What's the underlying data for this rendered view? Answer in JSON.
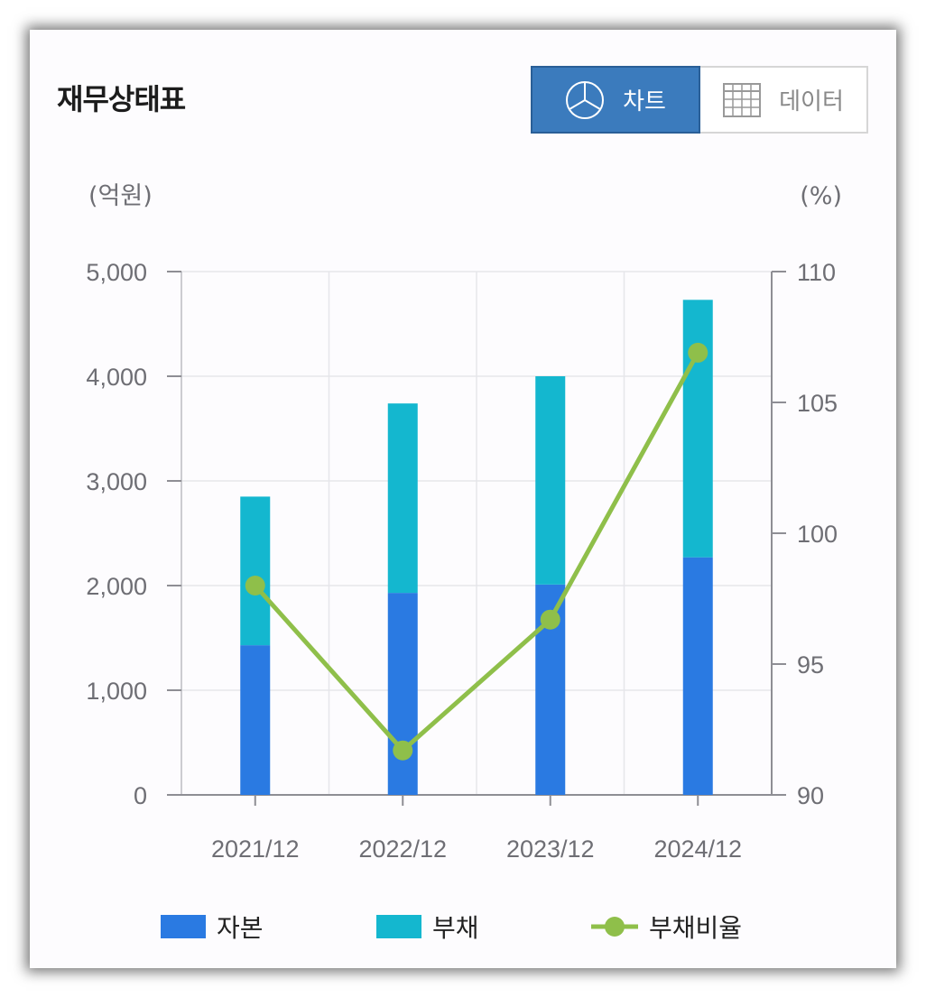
{
  "header": {
    "title": "재무상태표",
    "toggle": {
      "chart_label": "차트",
      "chart_icon": "pie-chart-icon",
      "data_label": "데이터",
      "data_icon": "table-grid-icon",
      "active": "chart"
    }
  },
  "chart_data": {
    "type": "bar",
    "stacked": true,
    "categories": [
      "2021/12",
      "2022/12",
      "2023/12",
      "2024/12"
    ],
    "series": [
      {
        "name": "자본",
        "type": "bar",
        "axis": "left",
        "color": "#2a7ae2",
        "values": [
          1430,
          1930,
          2010,
          2270
        ]
      },
      {
        "name": "부채",
        "type": "bar",
        "axis": "left",
        "color": "#14b7cf",
        "values": [
          1420,
          1810,
          1990,
          2460
        ]
      },
      {
        "name": "부채비율",
        "type": "line",
        "axis": "right",
        "color": "#8fbf4a",
        "values": [
          98.0,
          91.7,
          96.7,
          106.9
        ]
      }
    ],
    "left_axis": {
      "unit": "(억원)",
      "ylim": [
        0,
        5000
      ],
      "ticks": [
        0,
        1000,
        2000,
        3000,
        4000,
        5000
      ],
      "tick_labels": [
        "0",
        "1,000",
        "2,000",
        "3,000",
        "4,000",
        "5,000"
      ]
    },
    "right_axis": {
      "unit": "(%)",
      "ylim": [
        90,
        110
      ],
      "ticks": [
        90,
        95,
        100,
        105,
        110
      ],
      "tick_labels": [
        "90",
        "95",
        "100",
        "105",
        "110"
      ]
    },
    "grid": true,
    "legend_position": "bottom"
  }
}
